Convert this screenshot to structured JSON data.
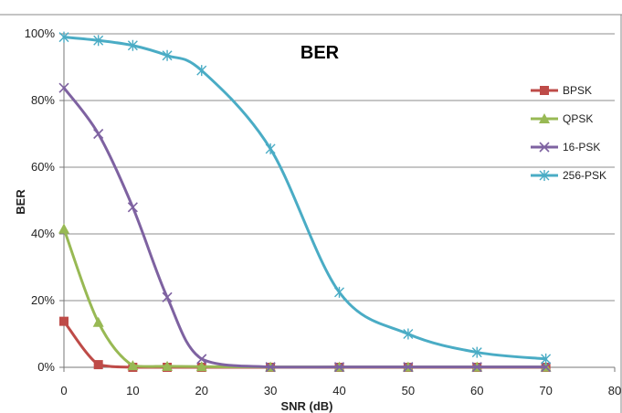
{
  "chart_data": {
    "type": "line",
    "title": "BER",
    "xlabel": "SNR (dB)",
    "ylabel": "BER",
    "xlim": [
      0,
      80
    ],
    "ylim": [
      0,
      100
    ],
    "x_ticks": [
      "0",
      "10",
      "20",
      "30",
      "40",
      "50",
      "60",
      "70",
      "80"
    ],
    "y_ticks": [
      "0%",
      "20%",
      "40%",
      "60%",
      "80%",
      "100%"
    ],
    "grid": true,
    "legend_position": "right",
    "series": [
      {
        "name": "BPSK",
        "color": "#be4b48",
        "marker": "square",
        "x": [
          0,
          5,
          10,
          15,
          20,
          30,
          40,
          50,
          60,
          70
        ],
        "y": [
          13.8,
          0.8,
          0,
          0,
          0,
          0,
          0,
          0,
          0,
          0
        ]
      },
      {
        "name": "QPSK",
        "color": "#98b954",
        "marker": "triangle",
        "x": [
          0,
          5,
          10,
          15,
          20,
          30,
          40,
          50,
          60,
          70
        ],
        "y": [
          41.5,
          13.5,
          0.5,
          0.3,
          0.2,
          0.1,
          0.1,
          0.1,
          0.1,
          0.1
        ]
      },
      {
        "name": "16-PSK",
        "color": "#7e62a1",
        "marker": "x",
        "x": [
          0,
          5,
          10,
          15,
          20,
          30,
          40,
          50,
          60,
          70
        ],
        "y": [
          83.8,
          70,
          48,
          21,
          2.5,
          0.1,
          0.1,
          0.1,
          0.1,
          0.1
        ]
      },
      {
        "name": "256-PSK",
        "color": "#4aacc5",
        "marker": "star",
        "x": [
          0,
          5,
          10,
          15,
          20,
          30,
          40,
          50,
          60,
          70
        ],
        "y": [
          99,
          98,
          96.5,
          93.5,
          89,
          65.5,
          22.5,
          10,
          4.5,
          2.5
        ]
      }
    ]
  }
}
